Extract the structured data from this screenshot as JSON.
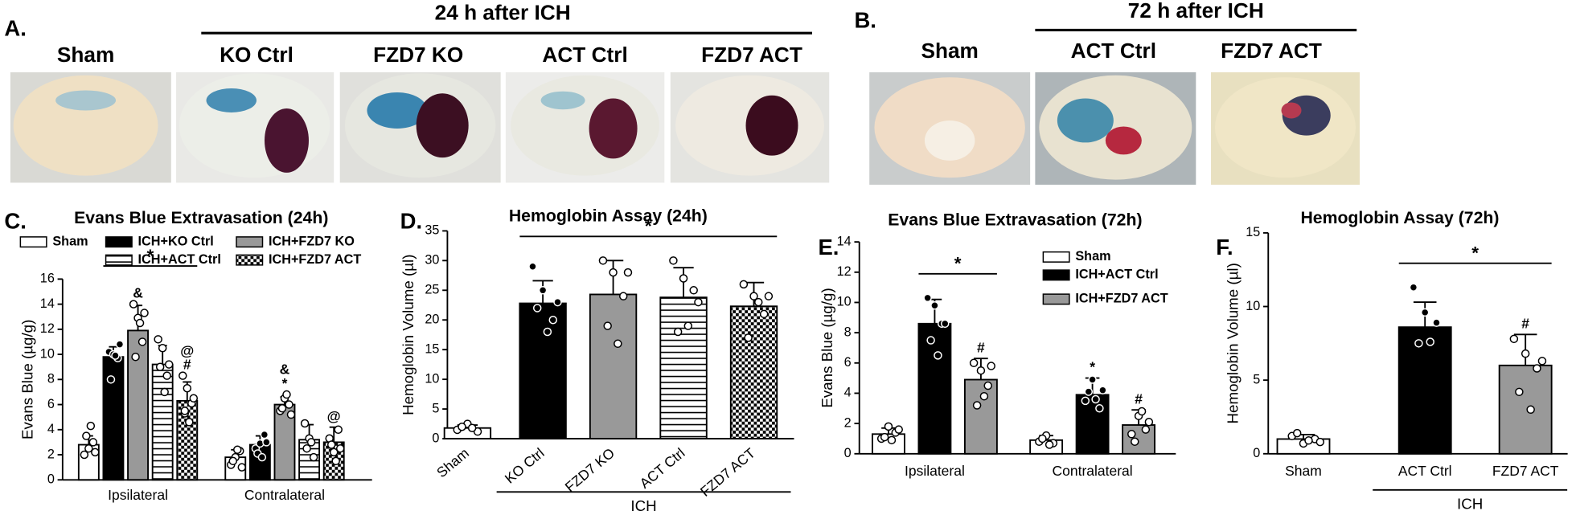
{
  "photos": {
    "a_label": "A.",
    "a_header": "24 h after ICH",
    "a_groups": [
      "Sham",
      "KO Ctrl",
      "FZD7 KO",
      "ACT Ctrl",
      "FZD7 ACT"
    ],
    "b_label": "B.",
    "b_header": "72 h after ICH",
    "b_groups": [
      "Sham",
      "ACT Ctrl",
      "FZD7 ACT"
    ]
  },
  "chart_data": [
    {
      "type": "bar",
      "panel": "C.",
      "title": "Evans Blue Extravasation (24h)",
      "ylabel": "Evans Blue (µg/g)",
      "categories": [
        "Ipsilateral",
        "Contralateral"
      ],
      "series": [
        {
          "name": "Sham",
          "fill": "#ffffff",
          "values": [
            2.8,
            1.8
          ],
          "errors": [
            0.7,
            0.6
          ],
          "points": [
            [
              2.0,
              2.5,
              3.0,
              3.5,
              4.3,
              2.2
            ],
            [
              1.2,
              1.8,
              2.3,
              1.5,
              2.4,
              1.0
            ]
          ]
        },
        {
          "name": "ICH+KO Ctrl",
          "fill": "#000000",
          "values": [
            9.8,
            2.8
          ],
          "errors": [
            0.8,
            0.7
          ],
          "points": [
            [
              10.2,
              10.0,
              9.7,
              8.0,
              9.9,
              10.8
            ],
            [
              2.5,
              2.9,
              3.6,
              2.1,
              1.8,
              3.0
            ]
          ]
        },
        {
          "name": "ICH+FZD7 KO",
          "fill": "#999999",
          "values": [
            11.9,
            6.0
          ],
          "errors": [
            2.0,
            0.6
          ],
          "points": [
            [
              14.0,
              12.9,
              11.0,
              9.8,
              12.5,
              13.3
            ],
            [
              5.5,
              6.5,
              6.0,
              5.7,
              6.8,
              5.2
            ]
          ]
        },
        {
          "name": "ICH+ACT Ctrl",
          "fill": "stripes",
          "values": [
            9.2,
            3.2
          ],
          "errors": [
            1.5,
            1.2
          ],
          "points": [
            [
              11.2,
              10.5,
              8.3,
              9.0,
              7.0,
              9.2
            ],
            [
              4.5,
              3.3,
              1.8,
              2.5,
              3.0
            ]
          ]
        },
        {
          "name": "ICH+FZD7 ACT",
          "fill": "checker",
          "values": [
            6.3,
            3.0
          ],
          "errors": [
            1.5,
            1.2
          ],
          "points": [
            [
              8.3,
              7.3,
              6.1,
              5.3,
              4.6,
              6.5,
              5.5
            ],
            [
              3.3,
              2.2,
              4.0,
              2.8,
              1.5,
              2.5
            ]
          ]
        }
      ],
      "ylim": [
        0,
        16
      ],
      "yticks": [
        0,
        2,
        4,
        6,
        8,
        10,
        12,
        14,
        16
      ],
      "annotations": [
        {
          "text": "&",
          "category": 0,
          "series": 2
        },
        {
          "text": "#",
          "category": 0,
          "series": 4
        },
        {
          "text": "@",
          "category": 0,
          "series": 4
        },
        {
          "text": "*",
          "category": 1,
          "series": 2
        },
        {
          "text": "&",
          "category": 1,
          "series": 2
        },
        {
          "text": "@",
          "category": 1,
          "series": 4
        }
      ],
      "brackets": [
        {
          "text": "*",
          "category": 0,
          "series": [
            1,
            4
          ]
        }
      ]
    },
    {
      "type": "bar",
      "panel": "D.",
      "title": "Hemoglobin Assay (24h)",
      "ylabel": "Hemoglobin Volume (µl)",
      "categories": [
        "Sham",
        "KO Ctrl",
        "FZD7 KO",
        "ACT Ctrl",
        "FZD7 ACT"
      ],
      "fills": [
        "#ffffff",
        "#000000",
        "#999999",
        "stripes",
        "checker"
      ],
      "values": [
        1.8,
        22.8,
        24.3,
        23.8,
        22.3
      ],
      "errors": [
        0.5,
        3.8,
        5.7,
        5.0,
        4.0
      ],
      "points": [
        [
          1.5,
          2.5,
          1.2,
          2.0,
          1.8
        ],
        [
          29,
          25,
          20,
          22,
          18,
          23
        ],
        [
          30,
          28,
          24,
          19,
          16,
          28
        ],
        [
          30,
          27,
          25,
          18,
          19,
          23
        ],
        [
          26,
          24,
          21,
          17,
          23,
          24
        ]
      ],
      "ylim": [
        0,
        35
      ],
      "yticks": [
        0,
        5,
        10,
        15,
        20,
        25,
        30,
        35
      ],
      "xtick_rotation": -40,
      "brackets": [
        {
          "text": "*",
          "categories": [
            1,
            4
          ]
        }
      ],
      "group": {
        "label": "ICH",
        "categories": [
          1,
          4
        ]
      }
    },
    {
      "type": "bar",
      "panel": "E.",
      "title": "Evans Blue Extravasation (72h)",
      "ylabel": "Evans Blue (µg/g)",
      "categories": [
        "Ipsilateral",
        "Contralateral"
      ],
      "series": [
        {
          "name": "Sham",
          "fill": "#ffffff",
          "values": [
            1.3,
            0.9
          ],
          "errors": [
            0.4,
            0.3
          ],
          "points": [
            [
              1.0,
              1.8,
              1.4,
              1.1,
              0.9,
              1.6
            ],
            [
              0.8,
              1.2,
              0.7,
              1.0,
              0.6
            ]
          ]
        },
        {
          "name": "ICH+ACT Ctrl",
          "fill": "#000000",
          "values": [
            8.6,
            3.9
          ],
          "errors": [
            1.6,
            1.1
          ],
          "points": [
            [
              10.3,
              9.8,
              8.6,
              7.5,
              6.5,
              8.6
            ],
            [
              3.5,
              4.9,
              3.0,
              4.1,
              3.6,
              4.2
            ]
          ]
        },
        {
          "name": "ICH+FZD7 ACT",
          "fill": "#999999",
          "values": [
            4.9,
            1.9
          ],
          "errors": [
            1.4,
            1.0
          ],
          "points": [
            [
              6.0,
              5.5,
              4.5,
              3.2,
              3.8,
              5.8
            ],
            [
              1.3,
              2.5,
              1.6,
              0.8,
              2.8,
              2.1
            ]
          ]
        }
      ],
      "ylim": [
        0,
        14
      ],
      "yticks": [
        0,
        2,
        4,
        6,
        8,
        10,
        12,
        14
      ],
      "annotations": [
        {
          "text": "#",
          "category": 0,
          "series": 2
        },
        {
          "text": "*",
          "category": 1,
          "series": 1
        },
        {
          "text": "#",
          "category": 1,
          "series": 2
        }
      ],
      "brackets": [
        {
          "text": "*",
          "category": 0,
          "series": [
            1,
            2
          ]
        }
      ]
    },
    {
      "type": "bar",
      "panel": "F.",
      "title": "Hemoglobin Assay (72h)",
      "ylabel": "Hemoglobin Volume (µl)",
      "categories": [
        "Sham",
        "ACT Ctrl",
        "FZD7 ACT"
      ],
      "fills": [
        "#ffffff",
        "#000000",
        "#999999"
      ],
      "values": [
        1.0,
        8.6,
        6.0
      ],
      "errors": [
        0.3,
        1.7,
        2.1
      ],
      "points": [
        [
          1.2,
          0.7,
          1.0,
          1.4,
          0.9,
          0.8
        ],
        [
          11.3,
          9.6,
          8.9,
          7.5,
          7.6
        ],
        [
          7.8,
          6.8,
          5.8,
          4.2,
          3.0,
          6.3
        ]
      ],
      "ylim": [
        0,
        15
      ],
      "yticks": [
        0,
        5,
        10,
        15
      ],
      "annotations": [
        {
          "text": "#",
          "category": 2
        }
      ],
      "brackets": [
        {
          "text": "*",
          "categories": [
            1,
            2
          ]
        }
      ],
      "group": {
        "label": "ICH",
        "categories": [
          1,
          2
        ]
      }
    }
  ]
}
